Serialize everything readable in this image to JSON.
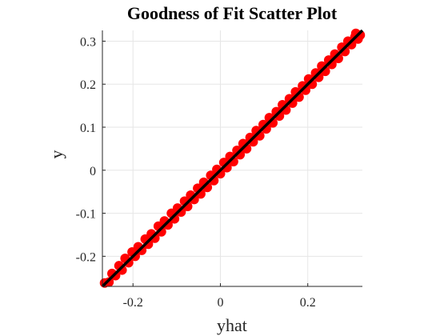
{
  "chart_data": {
    "type": "scatter",
    "title": "Goodness of Fit Scatter Plot",
    "xlabel": "yhat",
    "ylabel": "y",
    "xlim": [
      -0.27,
      0.325
    ],
    "ylim": [
      -0.27,
      0.325
    ],
    "grid": true,
    "xticks": [
      -0.2,
      0,
      0.2
    ],
    "xtick_labels": [
      "-0.2",
      "0",
      "0.2"
    ],
    "yticks": [
      -0.2,
      -0.1,
      0,
      0.1,
      0.2,
      0.3
    ],
    "ytick_labels": [
      "-0.2",
      "-0.1",
      "0",
      "0.1",
      "0.2",
      "0.3"
    ],
    "fit_line": {
      "x": [
        -0.27,
        0.325
      ],
      "y": [
        -0.27,
        0.325
      ],
      "color": "#000000"
    },
    "series": [
      {
        "color": "#ff0000",
        "points": [
          [
            -0.265,
            -0.262
          ],
          [
            -0.255,
            -0.26
          ],
          [
            -0.248,
            -0.24
          ],
          [
            -0.24,
            -0.245
          ],
          [
            -0.232,
            -0.222
          ],
          [
            -0.225,
            -0.232
          ],
          [
            -0.218,
            -0.205
          ],
          [
            -0.21,
            -0.215
          ],
          [
            -0.202,
            -0.19
          ],
          [
            -0.195,
            -0.2
          ],
          [
            -0.188,
            -0.178
          ],
          [
            -0.18,
            -0.186
          ],
          [
            -0.172,
            -0.16
          ],
          [
            -0.165,
            -0.172
          ],
          [
            -0.158,
            -0.148
          ],
          [
            -0.15,
            -0.158
          ],
          [
            -0.142,
            -0.13
          ],
          [
            -0.135,
            -0.143
          ],
          [
            -0.128,
            -0.118
          ],
          [
            -0.12,
            -0.127
          ],
          [
            -0.112,
            -0.1
          ],
          [
            -0.105,
            -0.113
          ],
          [
            -0.098,
            -0.088
          ],
          [
            -0.09,
            -0.097
          ],
          [
            -0.082,
            -0.072
          ],
          [
            -0.075,
            -0.084
          ],
          [
            -0.068,
            -0.058
          ],
          [
            -0.06,
            -0.068
          ],
          [
            -0.052,
            -0.042
          ],
          [
            -0.045,
            -0.055
          ],
          [
            -0.038,
            -0.028
          ],
          [
            -0.03,
            -0.04
          ],
          [
            -0.022,
            -0.012
          ],
          [
            -0.015,
            -0.024
          ],
          [
            -0.008,
            0.002
          ],
          [
            0.0,
            -0.008
          ],
          [
            0.008,
            0.018
          ],
          [
            0.015,
            0.006
          ],
          [
            0.022,
            0.032
          ],
          [
            0.03,
            0.02
          ],
          [
            0.038,
            0.046
          ],
          [
            0.045,
            0.036
          ],
          [
            0.052,
            0.062
          ],
          [
            0.06,
            0.05
          ],
          [
            0.068,
            0.076
          ],
          [
            0.075,
            0.066
          ],
          [
            0.082,
            0.092
          ],
          [
            0.09,
            0.08
          ],
          [
            0.098,
            0.106
          ],
          [
            0.105,
            0.096
          ],
          [
            0.112,
            0.122
          ],
          [
            0.12,
            0.11
          ],
          [
            0.128,
            0.136
          ],
          [
            0.135,
            0.126
          ],
          [
            0.142,
            0.152
          ],
          [
            0.15,
            0.14
          ],
          [
            0.158,
            0.166
          ],
          [
            0.165,
            0.156
          ],
          [
            0.172,
            0.182
          ],
          [
            0.18,
            0.17
          ],
          [
            0.188,
            0.196
          ],
          [
            0.195,
            0.186
          ],
          [
            0.202,
            0.212
          ],
          [
            0.21,
            0.2
          ],
          [
            0.218,
            0.226
          ],
          [
            0.225,
            0.216
          ],
          [
            0.232,
            0.242
          ],
          [
            0.24,
            0.23
          ],
          [
            0.248,
            0.256
          ],
          [
            0.255,
            0.246
          ],
          [
            0.262,
            0.27
          ],
          [
            0.27,
            0.26
          ],
          [
            0.278,
            0.286
          ],
          [
            0.285,
            0.276
          ],
          [
            0.292,
            0.3
          ],
          [
            0.3,
            0.292
          ],
          [
            0.308,
            0.31
          ],
          [
            0.315,
            0.305
          ],
          [
            0.32,
            0.314
          ],
          [
            0.31,
            0.318
          ]
        ]
      }
    ]
  }
}
